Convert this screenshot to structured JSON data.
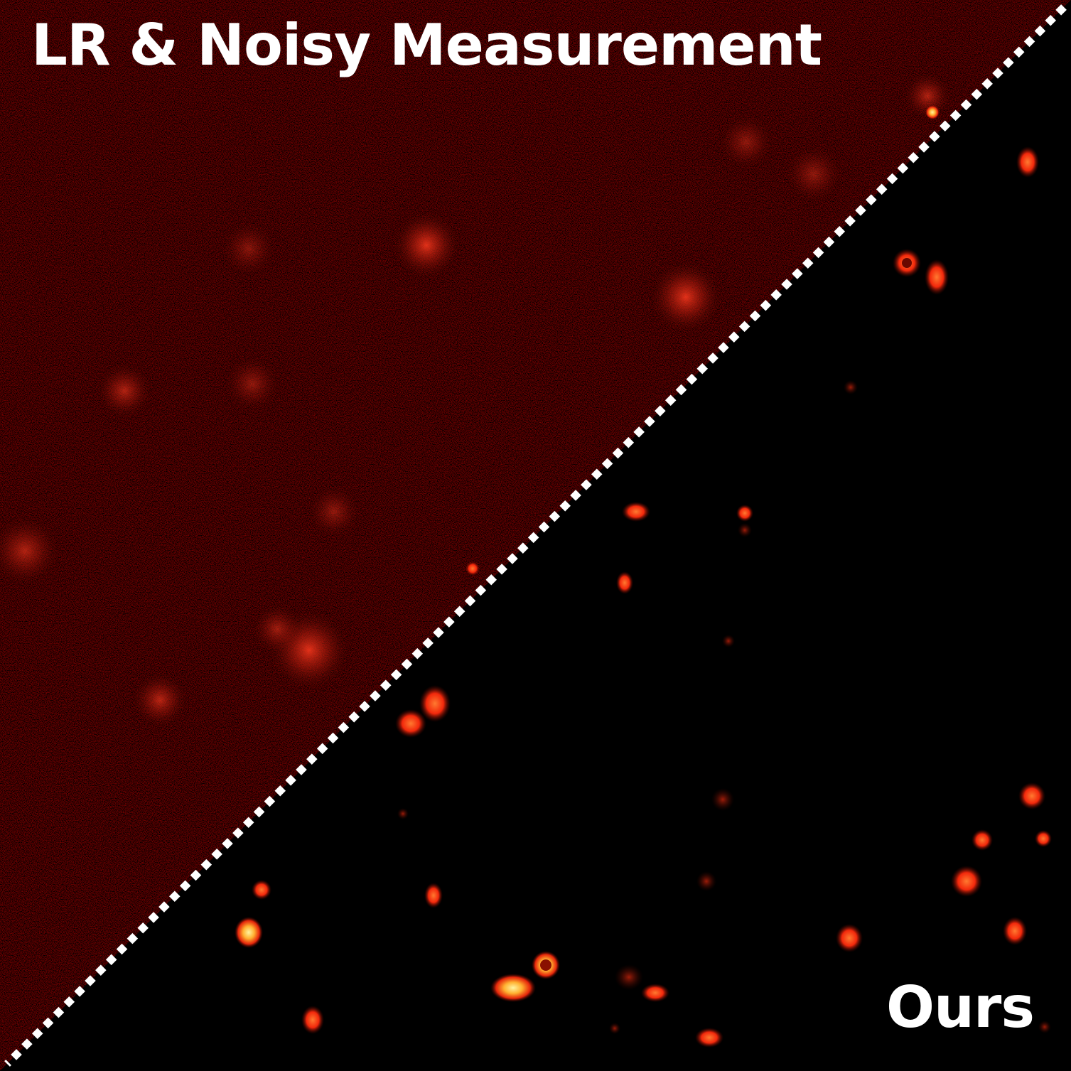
{
  "labels": {
    "measurement": "LR & Noisy Measurement",
    "ours": "Ours"
  },
  "colors": {
    "background": "#000000",
    "divider": "#ffffff",
    "noise_tint": "#5a0c06",
    "blob_core": "#ff3a14",
    "hot_core": "#ffe25a"
  }
}
